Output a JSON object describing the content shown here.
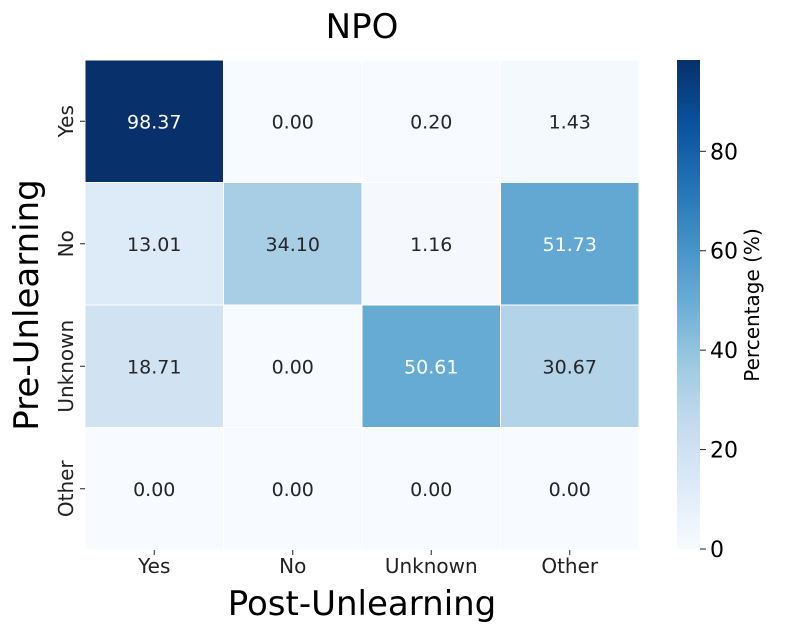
{
  "chart_data": {
    "type": "heatmap",
    "title": "NPO",
    "xlabel": "Post-Unlearning",
    "ylabel": "Pre-Unlearning",
    "x_categories": [
      "Yes",
      "No",
      "Unknown",
      "Other"
    ],
    "y_categories": [
      "Yes",
      "No",
      "Unknown",
      "Other"
    ],
    "values": [
      [
        98.37,
        0.0,
        0.2,
        1.43
      ],
      [
        13.01,
        34.1,
        1.16,
        51.73
      ],
      [
        18.71,
        0.0,
        50.61,
        30.67
      ],
      [
        0.0,
        0.0,
        0.0,
        0.0
      ]
    ],
    "cell_labels": [
      [
        "98.37",
        "0.00",
        "0.20",
        "1.43"
      ],
      [
        "13.01",
        "34.10",
        "1.16",
        "51.73"
      ],
      [
        "18.71",
        "0.00",
        "50.61",
        "30.67"
      ],
      [
        "0.00",
        "0.00",
        "0.00",
        "0.00"
      ]
    ],
    "colorbar": {
      "label": "Percentage (%)",
      "range": [
        0,
        98.37
      ],
      "ticks": [
        0,
        20,
        40,
        60,
        80
      ],
      "colormap": "Blues"
    }
  }
}
